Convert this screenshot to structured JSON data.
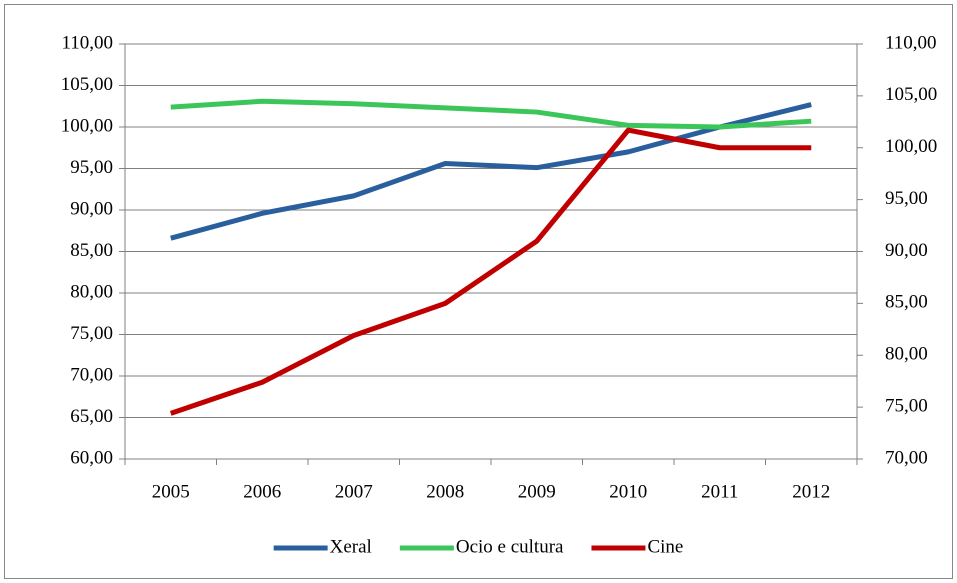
{
  "chart_data": {
    "type": "line",
    "categories": [
      "2005",
      "2006",
      "2007",
      "2008",
      "2009",
      "2010",
      "2011",
      "2012"
    ],
    "series": [
      {
        "name": "Xeral",
        "color": "#2a5f9e",
        "values": [
          86.6,
          89.6,
          91.7,
          95.6,
          95.1,
          97.0,
          100.0,
          102.7
        ]
      },
      {
        "name": "Ocio e cultura",
        "color": "#3cc65a",
        "values": [
          102.4,
          103.1,
          102.8,
          102.3,
          101.8,
          100.2,
          100.0,
          100.7
        ]
      },
      {
        "name": "Cine",
        "color": "#c00000",
        "axis": "y2",
        "values": [
          74.4,
          77.4,
          81.9,
          85.0,
          91.0,
          101.7,
          100.0,
          100.0
        ]
      }
    ],
    "ylim": [
      60,
      110
    ],
    "yticks": [
      {
        "value": 60,
        "label": "60,00"
      },
      {
        "value": 65,
        "label": "65,00"
      },
      {
        "value": 70,
        "label": "70,00"
      },
      {
        "value": 75,
        "label": "75,00"
      },
      {
        "value": 80,
        "label": "80,00"
      },
      {
        "value": 85,
        "label": "85,00"
      },
      {
        "value": 90,
        "label": "90,00"
      },
      {
        "value": 95,
        "label": "95,00"
      },
      {
        "value": 100,
        "label": "100,00"
      },
      {
        "value": 105,
        "label": "105,00"
      },
      {
        "value": 110,
        "label": "110,00"
      }
    ],
    "y2lim": [
      70,
      110
    ],
    "y2ticks": [
      {
        "value": 70,
        "label": "70,00"
      },
      {
        "value": 75,
        "label": "75,00"
      },
      {
        "value": 80,
        "label": "80,00"
      },
      {
        "value": 85,
        "label": "85,00"
      },
      {
        "value": 90,
        "label": "90,00"
      },
      {
        "value": 95,
        "label": "95,00"
      },
      {
        "value": 100,
        "label": "100,00"
      },
      {
        "value": 105,
        "label": "105,00"
      },
      {
        "value": 110,
        "label": "110,00"
      }
    ],
    "grid": true,
    "legend": "bottom"
  }
}
